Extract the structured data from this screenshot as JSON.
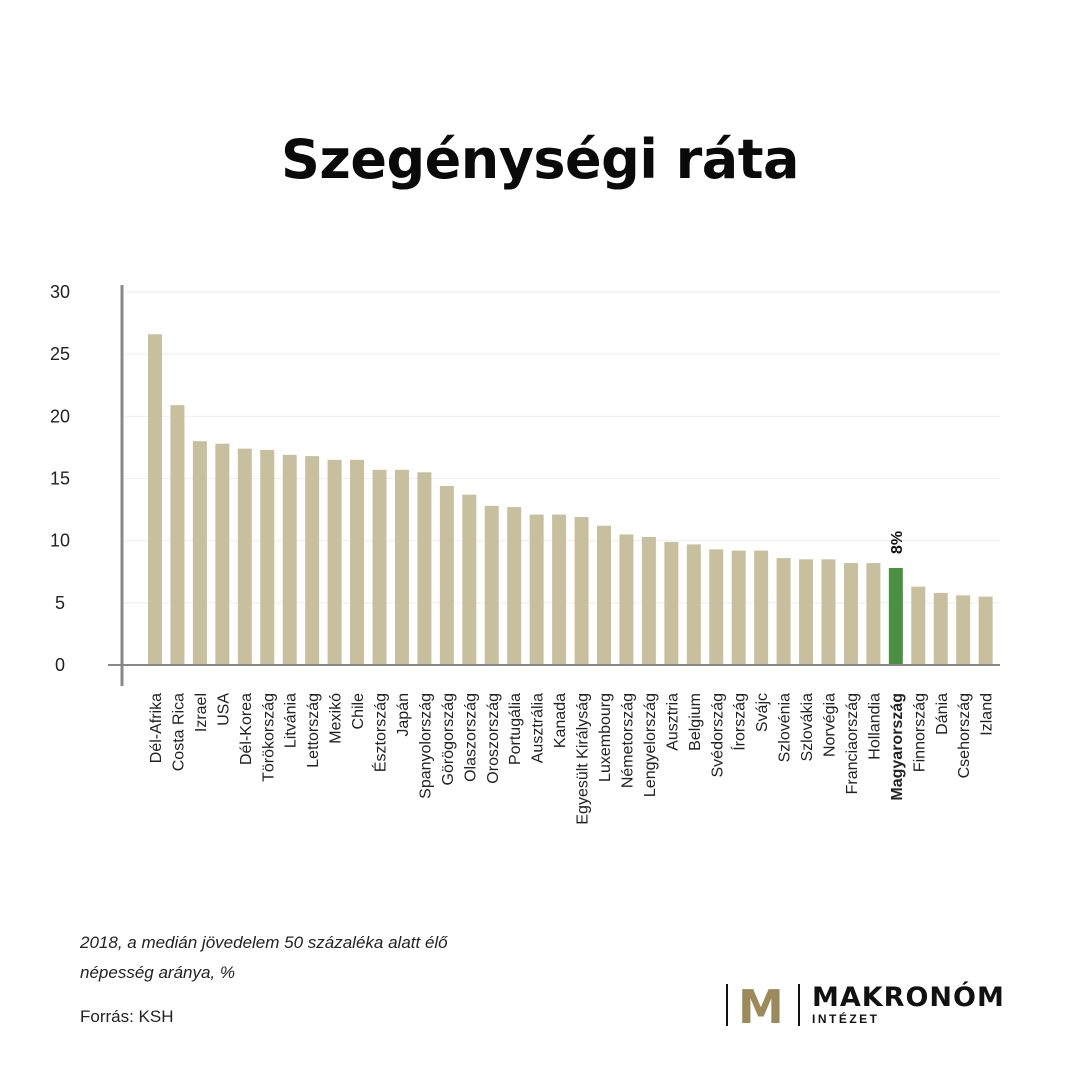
{
  "title": "Szegénységi ráta",
  "note_line1": "2018, a medián jövedelem 50 százaléka alatt élő",
  "note_line2": "népesség aránya, %",
  "source": "Forrás: KSH",
  "logo": {
    "mark": "M",
    "name": "MAKRONÓM",
    "sub": "INTÉZET"
  },
  "colors": {
    "bar": "#c8bf9f",
    "highlight": "#4a8f42",
    "axis": "#888888",
    "grid": "#eeeeee"
  },
  "chart_data": {
    "type": "bar",
    "ylim": [
      0,
      30
    ],
    "yticks": [
      0,
      5,
      10,
      15,
      20,
      25,
      30
    ],
    "grid": true,
    "highlight": {
      "category": "Magyarország",
      "label": "8%"
    },
    "categories": [
      "Dél-Afrika",
      "Costa Rica",
      "Izrael",
      "USA",
      "Dél-Korea",
      "Törökország",
      "Litvánia",
      "Lettország",
      "Mexikó",
      "Chile",
      "Észtország",
      "Japán",
      "Spanyolország",
      "Görögország",
      "Olaszország",
      "Oroszország",
      "Portugália",
      "Ausztrália",
      "Kanada",
      "Egyesült Királyság",
      "Luxembourg",
      "Németország",
      "Lengyelország",
      "Ausztria",
      "Belgium",
      "Svédország",
      "Írország",
      "Svájc",
      "Szlovénia",
      "Szlovákia",
      "Norvégia",
      "Franciaország",
      "Hollandia",
      "Magyarország",
      "Finnország",
      "Dánia",
      "Csehország",
      "Izland"
    ],
    "values": [
      26.6,
      20.9,
      18.0,
      17.8,
      17.4,
      17.3,
      16.9,
      16.8,
      16.5,
      16.5,
      15.7,
      15.7,
      15.5,
      14.4,
      13.7,
      12.8,
      12.7,
      12.1,
      12.1,
      11.9,
      11.2,
      10.5,
      10.3,
      9.9,
      9.7,
      9.3,
      9.2,
      9.2,
      8.6,
      8.5,
      8.5,
      8.2,
      8.2,
      7.8,
      6.3,
      5.8,
      5.6,
      5.5
    ]
  }
}
